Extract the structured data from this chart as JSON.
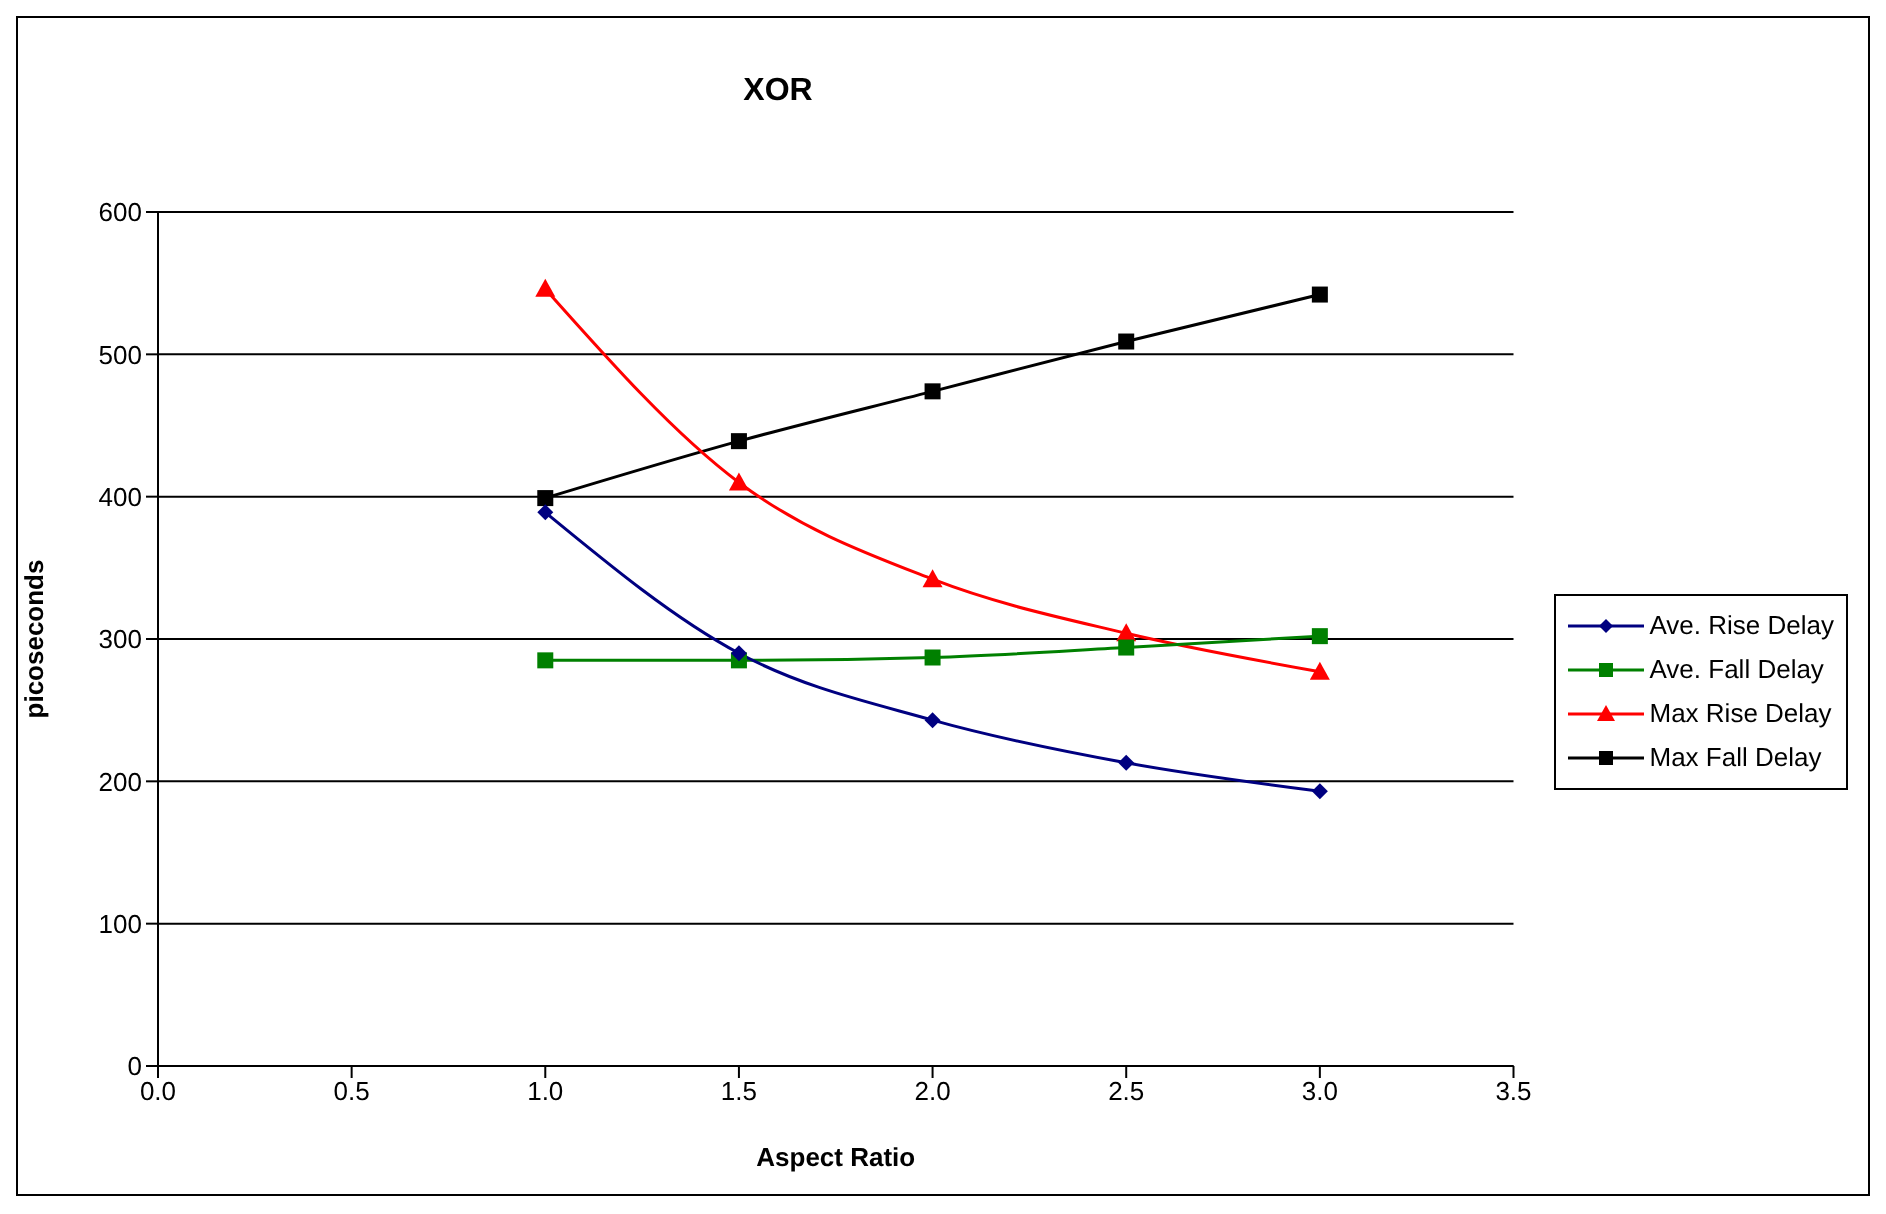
{
  "chart_data": {
    "type": "line",
    "title": "XOR",
    "xlabel": "Aspect Ratio",
    "ylabel": "picoseconds",
    "x": [
      1.0,
      1.5,
      2.0,
      2.5,
      3.0
    ],
    "series": [
      {
        "name": "Ave. Rise Delay",
        "color": "#000080",
        "marker": "diamond",
        "values": [
          389,
          290,
          243,
          213,
          193
        ]
      },
      {
        "name": "Ave. Fall Delay",
        "color": "#008000",
        "marker": "square",
        "values": [
          285,
          285,
          287,
          294,
          302
        ]
      },
      {
        "name": "Max Rise Delay",
        "color": "#ff0000",
        "marker": "triangle",
        "values": [
          546,
          410,
          342,
          304,
          277
        ]
      },
      {
        "name": "Max Fall Delay",
        "color": "#000000",
        "marker": "square",
        "values": [
          399,
          439,
          474,
          509,
          542
        ]
      }
    ],
    "xlim": [
      0,
      3.5
    ],
    "xticks": [
      {
        "value": 0,
        "label": "0.0"
      },
      {
        "value": 0.5,
        "label": "0.5"
      },
      {
        "value": 1,
        "label": "1.0"
      },
      {
        "value": 1.5,
        "label": "1.5"
      },
      {
        "value": 2,
        "label": "2.0"
      },
      {
        "value": 2.5,
        "label": "2.5"
      },
      {
        "value": 3,
        "label": "3.0"
      },
      {
        "value": 3.5,
        "label": "3.5"
      }
    ],
    "ylim": [
      0,
      600
    ],
    "yticks": [
      0,
      100,
      200,
      300,
      400,
      500,
      600
    ],
    "grid": "y",
    "legend": "right"
  }
}
